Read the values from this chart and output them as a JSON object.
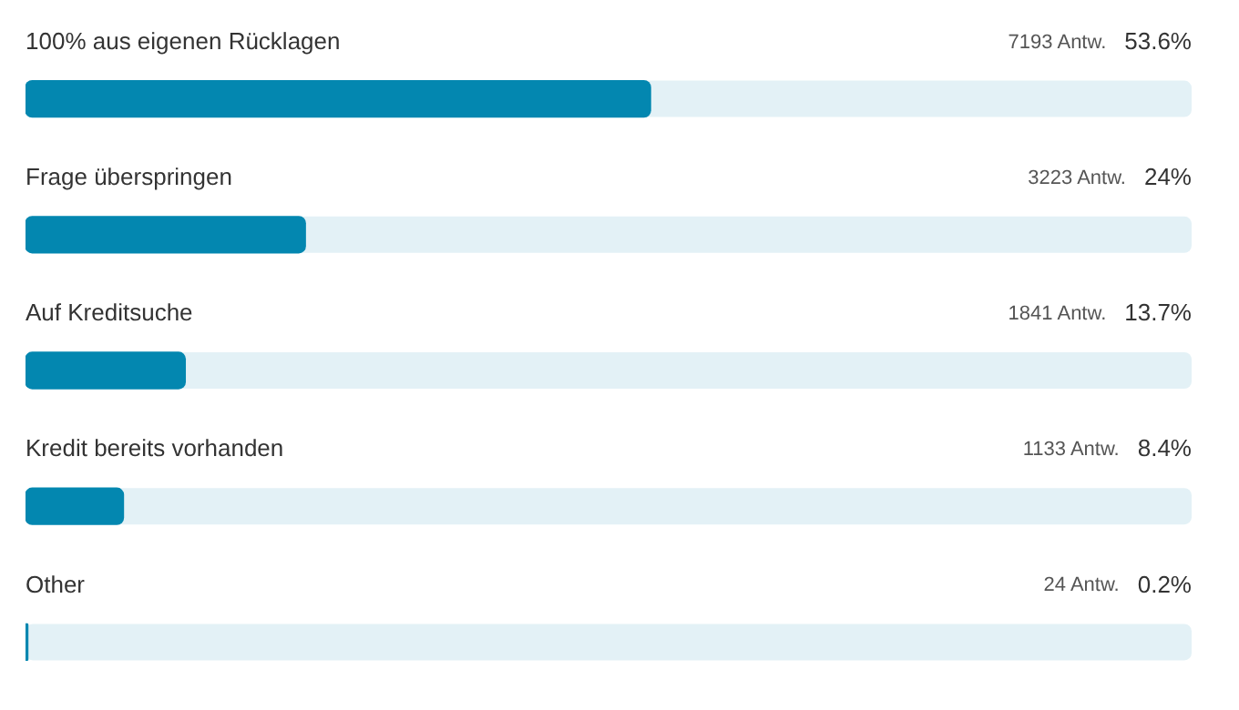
{
  "chart_data": {
    "type": "bar",
    "orientation": "horizontal",
    "categories": [
      "100% aus eigenen Rücklagen",
      "Frage überspringen",
      "Auf Kreditsuche",
      "Kredit bereits vorhanden",
      "Other"
    ],
    "values": [
      53.6,
      24,
      13.7,
      8.4,
      0.2
    ],
    "value_labels": [
      "53.6%",
      "24%",
      "13.7%",
      "8.4%",
      "0.2%"
    ],
    "color": "#0387b0",
    "xlim": [
      0,
      100
    ],
    "tick_labels": false,
    "legend": false,
    "annotations": [
      "7193 Antw.",
      "3223 Antw.",
      "1841 Antw.",
      "1133 Antw.",
      "24 Antw."
    ]
  }
}
